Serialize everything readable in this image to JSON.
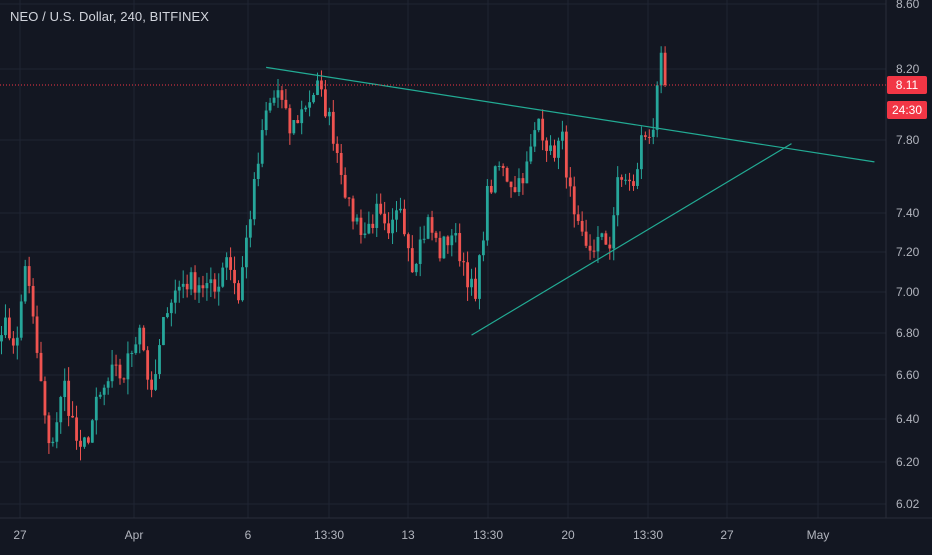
{
  "chart_data": {
    "type": "candlestick",
    "title": "NEO / U.S. Dollar, 240, BITFINEX",
    "y_ticks": [
      "6.02",
      "6.20",
      "6.40",
      "6.60",
      "6.80",
      "7.00",
      "7.20",
      "7.40",
      "7.80",
      "8.20",
      "8.60"
    ],
    "y_tick_values": [
      6.02,
      6.2,
      6.4,
      6.6,
      6.8,
      7.0,
      7.2,
      7.4,
      7.8,
      8.2,
      8.6
    ],
    "x_ticks": [
      "27",
      "Apr",
      "6",
      "13:30",
      "13",
      "13:30",
      "20",
      "13:30",
      "27",
      "May"
    ],
    "last_price": "8.11",
    "last_price_value": 8.11,
    "countdown": "24:30",
    "colors": {
      "background": "#131722",
      "up": "#26a69a",
      "down": "#ef5350",
      "grid": "#1f2433",
      "text": "#b2b5be",
      "trendline": "#22ab94",
      "price_label": "#f23645"
    },
    "anchors": [
      {
        "i": 0,
        "p": 6.85
      },
      {
        "i": 4,
        "p": 6.75
      },
      {
        "i": 6,
        "p": 7.15
      },
      {
        "i": 8,
        "p": 6.85
      },
      {
        "i": 12,
        "p": 6.25
      },
      {
        "i": 16,
        "p": 6.55
      },
      {
        "i": 20,
        "p": 6.22
      },
      {
        "i": 24,
        "p": 6.45
      },
      {
        "i": 28,
        "p": 6.6
      },
      {
        "i": 31,
        "p": 6.6
      },
      {
        "i": 35,
        "p": 6.85
      },
      {
        "i": 38,
        "p": 6.48
      },
      {
        "i": 42,
        "p": 6.95
      },
      {
        "i": 46,
        "p": 7.05
      },
      {
        "i": 50,
        "p": 7.05
      },
      {
        "i": 54,
        "p": 7.0
      },
      {
        "i": 57,
        "p": 7.2
      },
      {
        "i": 60,
        "p": 6.98
      },
      {
        "i": 63,
        "p": 7.4
      },
      {
        "i": 67,
        "p": 7.95
      },
      {
        "i": 70,
        "p": 8.08
      },
      {
        "i": 73,
        "p": 7.85
      },
      {
        "i": 77,
        "p": 8.0
      },
      {
        "i": 80,
        "p": 8.1
      },
      {
        "i": 83,
        "p": 7.92
      },
      {
        "i": 86,
        "p": 7.65
      },
      {
        "i": 88,
        "p": 7.42
      },
      {
        "i": 92,
        "p": 7.3
      },
      {
        "i": 95,
        "p": 7.4
      },
      {
        "i": 98,
        "p": 7.25
      },
      {
        "i": 101,
        "p": 7.45
      },
      {
        "i": 104,
        "p": 7.15
      },
      {
        "i": 108,
        "p": 7.35
      },
      {
        "i": 111,
        "p": 7.2
      },
      {
        "i": 114,
        "p": 7.3
      },
      {
        "i": 117,
        "p": 7.15
      },
      {
        "i": 120,
        "p": 6.95
      },
      {
        "i": 123,
        "p": 7.5
      },
      {
        "i": 126,
        "p": 7.65
      },
      {
        "i": 130,
        "p": 7.55
      },
      {
        "i": 133,
        "p": 7.65
      },
      {
        "i": 136,
        "p": 7.92
      },
      {
        "i": 139,
        "p": 7.72
      },
      {
        "i": 142,
        "p": 7.8
      },
      {
        "i": 145,
        "p": 7.35
      },
      {
        "i": 148,
        "p": 7.2
      },
      {
        "i": 151,
        "p": 7.25
      },
      {
        "i": 154,
        "p": 7.25
      },
      {
        "i": 156,
        "p": 7.55
      },
      {
        "i": 158,
        "p": 7.6
      },
      {
        "i": 160,
        "p": 7.52
      },
      {
        "i": 162,
        "p": 7.8
      },
      {
        "i": 165,
        "p": 7.88
      },
      {
        "i": 167,
        "p": 8.22
      },
      {
        "i": 168,
        "p": 8.11
      }
    ],
    "trendlines": [
      {
        "name": "upper",
        "from": {
          "i": 67,
          "p": 8.21
        },
        "to": {
          "i": 221,
          "p": 7.68
        }
      },
      {
        "name": "lower",
        "from": {
          "i": 119,
          "p": 6.79
        },
        "to": {
          "i": 200,
          "p": 7.78
        }
      }
    ]
  }
}
